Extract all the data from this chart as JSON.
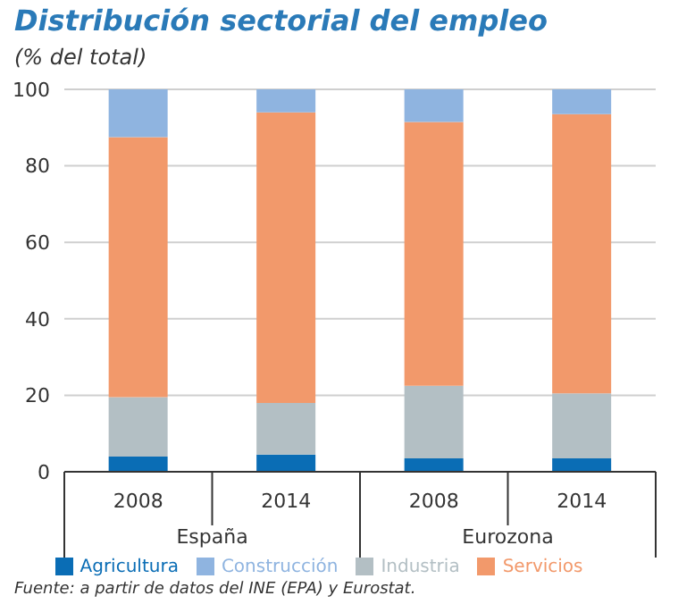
{
  "chart_data": {
    "type": "bar",
    "title": "Distribución sectorial del empleo",
    "subtitle": "(% del total)",
    "categories": [
      "2008",
      "2014",
      "2008",
      "2014"
    ],
    "series": [
      {
        "name": "Agricultura",
        "color": "#0a6db5",
        "values": [
          4,
          4.5,
          3.5,
          3.5
        ]
      },
      {
        "name": "Industria",
        "color": "#b3bfc4",
        "values": [
          15.5,
          13.5,
          19,
          17
        ]
      },
      {
        "name": "Servicios",
        "color": "#f2996b",
        "values": [
          68,
          76,
          69,
          73
        ]
      },
      {
        "name": "Construcción",
        "color": "#8fb4e0",
        "values": [
          12.5,
          6,
          8.5,
          6.5
        ]
      }
    ],
    "stacked": true,
    "ylim": [
      0,
      100
    ],
    "yticks": [
      0,
      20,
      40,
      60,
      80,
      100
    ],
    "grid": "y",
    "legend": "bottom",
    "annotations": [
      "España",
      "Eurozona",
      "Fuente: a partir de datos del INE (EPA) y Eurostat."
    ]
  }
}
